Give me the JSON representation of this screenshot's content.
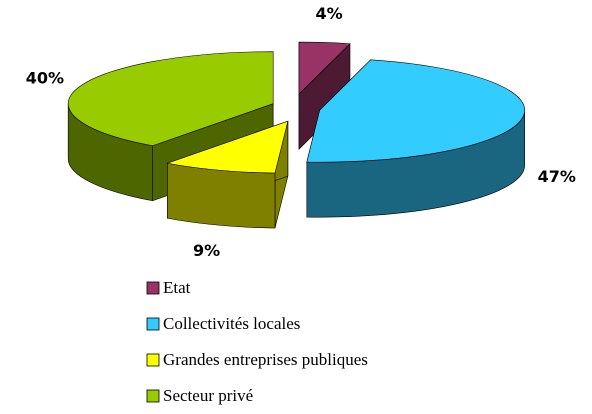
{
  "chart_data": {
    "type": "pie",
    "categories": [
      "Etat",
      "Collectivités locales",
      "Grandes entreprises publiques",
      "Secteur privé"
    ],
    "values": [
      4,
      47,
      9,
      40
    ],
    "value_labels": [
      "4%",
      "47%",
      "9%",
      "40%"
    ],
    "colors": [
      "#993366",
      "#33ccff",
      "#ffff00",
      "#99cc00"
    ]
  }
}
